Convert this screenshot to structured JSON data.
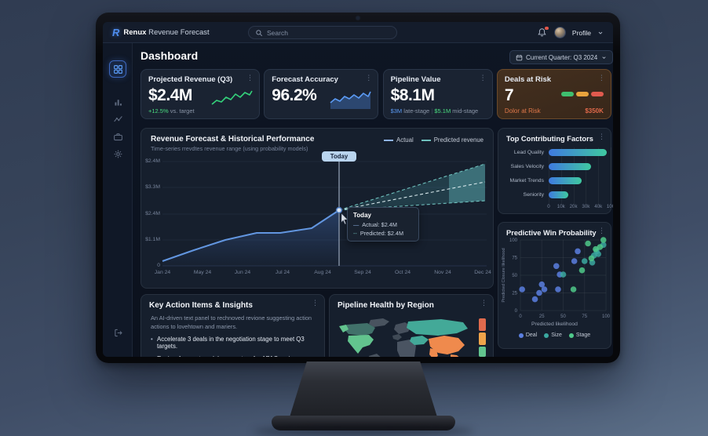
{
  "topbar": {
    "brand_bold": "Renux",
    "brand_rest": "Revenue Forecast",
    "search_placeholder": "Search",
    "profile_label": "Profile",
    "icons": [
      "search-icon",
      "bell-icon",
      "avatar",
      "chevron-down-icon"
    ]
  },
  "sidebar": {
    "icons": [
      "dashboard-grid",
      "bar-chart",
      "trend",
      "portfolio",
      "settings",
      "logout"
    ]
  },
  "header": {
    "title": "Dashboard",
    "quarter_button": "Current Quarter: Q3 2024"
  },
  "kpis": [
    {
      "title": "Projected Revenue (Q3)",
      "value": "$2.4M",
      "delta": "+12.5%",
      "delta_rest": " vs. target"
    },
    {
      "title": "Forecast Accuracy",
      "value": "96.2%"
    },
    {
      "title": "Pipeline Value",
      "value": "$8.1M",
      "late": "$3M",
      "late_label": " late-stage",
      "divider": "|",
      "mid": "$5.1M",
      "mid_label": " mid-stage"
    },
    {
      "title": "Deals at Risk",
      "value": "7",
      "risk_label": "Dolor at Risk",
      "risk_amount": "$350K",
      "pill_colors": [
        "#3fbf6f",
        "#e8a33d",
        "#e05a4e"
      ]
    }
  ],
  "forecast": {
    "title": "Revenue Forecast & Historical Performance",
    "subtitle": "Time-series rrevdtes revenue range (using probability models)",
    "legend": [
      {
        "label": "Actual"
      },
      {
        "label": "Predicted revenue"
      }
    ],
    "y_ticks": [
      "$2.4M",
      "$3.3M",
      "$2.4M",
      "$1.1M",
      "0"
    ],
    "x_ticks": [
      "Jan 24",
      "May 24",
      "Jun 24",
      "Jul 24",
      "Aug 24",
      "Sep 24",
      "Oct 24",
      "Nov 24",
      "Dec 24"
    ],
    "today_label": "Today",
    "tooltip": {
      "title": "Today",
      "actual": "Actual: $2.4M",
      "predicted": "Predicted: $2.4M"
    },
    "colors": {
      "actual": "#6296e0",
      "predicted": "#6fc0bd"
    }
  },
  "factors": {
    "title": "Top Contributing Factors",
    "categories": [
      "Lead Quality",
      "Sales Velocity",
      "Market Trends",
      "Seniority"
    ],
    "values": [
      42000,
      31000,
      24000,
      14000
    ],
    "axis_max": 45000,
    "x_ticks": [
      "0",
      "10k",
      "20k",
      "30k",
      "40k",
      "100"
    ]
  },
  "scatter": {
    "title": "Predictive Win Probability",
    "xlabel": "Predicted likelihood",
    "ylabel": "Predicted Closure likelihood",
    "x_ticks": [
      0,
      25,
      50,
      75,
      100
    ],
    "y_ticks": [
      100,
      75,
      50,
      25,
      0
    ],
    "series": [
      {
        "name": "Deal",
        "color": "#5b7fe0",
        "points": [
          [
            2,
            30
          ],
          [
            17,
            16
          ],
          [
            22,
            25
          ],
          [
            25,
            37
          ],
          [
            28,
            30
          ],
          [
            42,
            63
          ],
          [
            44,
            30
          ],
          [
            46,
            51
          ],
          [
            63,
            70
          ],
          [
            67,
            84
          ]
        ]
      },
      {
        "name": "Size",
        "color": "#3ba8a0",
        "points": [
          [
            50,
            51
          ],
          [
            75,
            70
          ],
          [
            84,
            68
          ],
          [
            86,
            78
          ],
          [
            89,
            84
          ],
          [
            91,
            80
          ],
          [
            97,
            93
          ]
        ]
      },
      {
        "name": "Stage",
        "color": "#4fc98a",
        "points": [
          [
            62,
            30
          ],
          [
            72,
            57
          ],
          [
            79,
            95
          ],
          [
            83,
            74
          ],
          [
            88,
            87
          ],
          [
            93,
            90
          ],
          [
            97,
            100
          ]
        ]
      }
    ]
  },
  "actions": {
    "title": "Key Action Items & Insights",
    "description": "An AI-driven text panel to rechnoved revione suggesting action actions to lovehtown and mariers.",
    "bullets": [
      "Accelerate 3 deals in the negotiation stage to meet Q3 targets.",
      "Review forecast model parameters for APAC region."
    ]
  },
  "map": {
    "title": "Pipeline Health by Region",
    "legend_colors": [
      "#e06a4d",
      "#f0a44a",
      "#62c48e",
      "#43a998"
    ]
  }
}
